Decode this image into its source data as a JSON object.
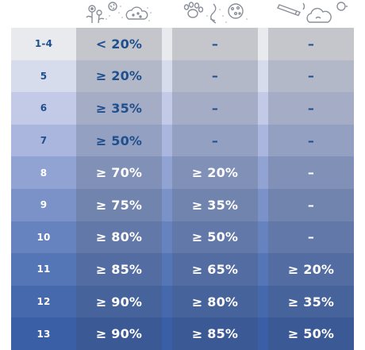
{
  "columns": [
    {
      "icon": "flowers-pollen-icon"
    },
    {
      "icon": "paw-dust-icon"
    },
    {
      "icon": "smoke-cloud-icon"
    }
  ],
  "rows": [
    {
      "level": "1-4",
      "c1": "< 20%",
      "c2": "–",
      "c3": "–",
      "row_color": "#e9eaee",
      "col1_color": "#c4c6cc",
      "text_color": "#1f4f8c"
    },
    {
      "level": "5",
      "c1": "≥ 20%",
      "c2": "–",
      "c3": "–",
      "row_color": "#d7dced",
      "col1_color": "#b3b8c9",
      "text_color": "#1f4f8c"
    },
    {
      "level": "6",
      "c1": "≥ 35%",
      "c2": "–",
      "c3": "–",
      "row_color": "#c2cae7",
      "col1_color": "#a4acc6",
      "text_color": "#1f4f8c"
    },
    {
      "level": "7",
      "c1": "≥ 50%",
      "c2": "–",
      "c3": "–",
      "row_color": "#aab6de",
      "col1_color": "#93a0c2",
      "text_color": "#1f4f8c"
    },
    {
      "level": "8",
      "c1": "≥ 70%",
      "c2": "≥ 20%",
      "c3": "–",
      "row_color": "#91a3d3",
      "col1_color": "#8090b7",
      "text_color": "#ffffff"
    },
    {
      "level": "9",
      "c1": "≥ 75%",
      "c2": "≥ 35%",
      "c3": "–",
      "row_color": "#7b92c9",
      "col1_color": "#7184ae",
      "text_color": "#ffffff"
    },
    {
      "level": "10",
      "c1": "≥ 80%",
      "c2": "≥ 50%",
      "c3": "–",
      "row_color": "#6683bf",
      "col1_color": "#6178a8",
      "text_color": "#ffffff"
    },
    {
      "level": "11",
      "c1": "≥ 85%",
      "c2": "≥ 65%",
      "c3": "≥ 20%",
      "row_color": "#5475b6",
      "col1_color": "#536da2",
      "text_color": "#ffffff"
    },
    {
      "level": "12",
      "c1": "≥ 90%",
      "c2": "≥ 80%",
      "c3": "≥ 35%",
      "row_color": "#4669ae",
      "col1_color": "#46639c",
      "text_color": "#ffffff"
    },
    {
      "level": "13",
      "c1": "≥ 90%",
      "c2": "≥ 85%",
      "c3": "≥ 50%",
      "row_color": "#3a5fa6",
      "col1_color": "#3b5a95",
      "text_color": "#ffffff"
    }
  ]
}
